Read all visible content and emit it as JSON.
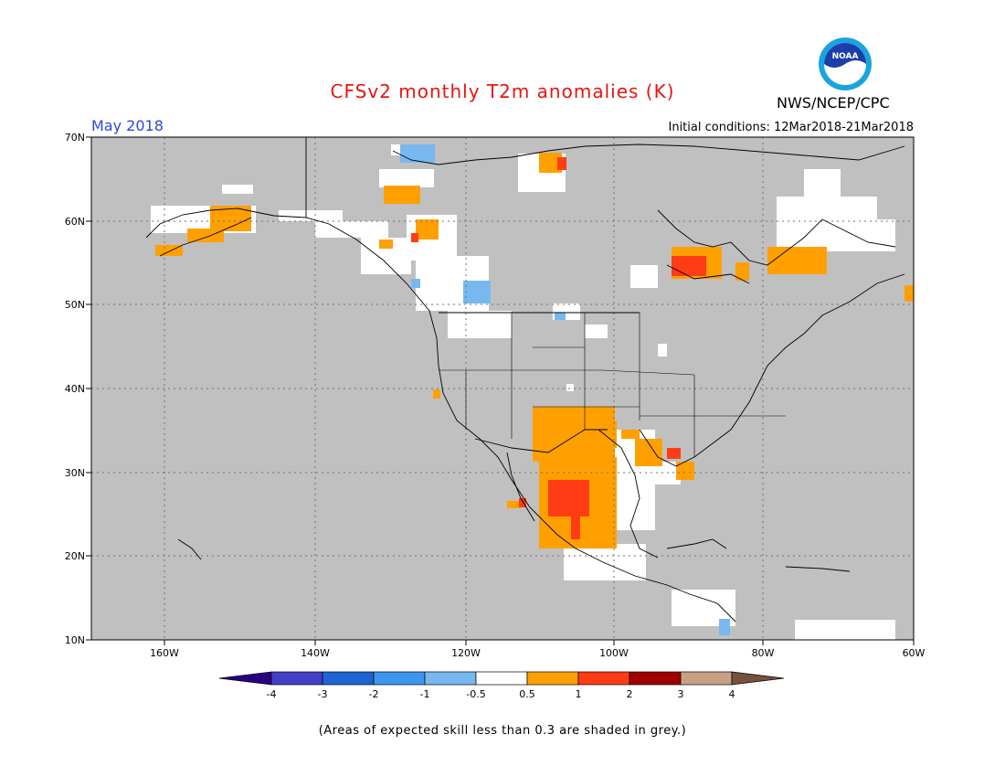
{
  "title": "CFSv2 monthly T2m anomalies (K)",
  "agency": "NWS/NCEP/CPC",
  "logo_text": "NOAA",
  "period": "May 2018",
  "init_conditions": "Initial conditions: 12Mar2018-21Mar2018",
  "note": "(Areas of expected skill less than 0.3 are shaded in grey.)",
  "lat_labels": [
    "70N",
    "60N",
    "50N",
    "40N",
    "30N",
    "20N",
    "10N"
  ],
  "lon_labels": [
    "160W",
    "140W",
    "120W",
    "100W",
    "80W",
    "60W"
  ],
  "colorbar": {
    "tick_labels": [
      "-4",
      "-3",
      "-2",
      "-1",
      "-0.5",
      "0.5",
      "1",
      "2",
      "3",
      "4"
    ],
    "colors": [
      "#280080",
      "#4040c8",
      "#1e64d2",
      "#3c96f0",
      "#78b8f0",
      "#ffffff",
      "#ffa000",
      "#ff3c14",
      "#a00000",
      "#c8a088",
      "#785040"
    ]
  },
  "colors": {
    "skill_grey": "#c0c0c0",
    "title_red": "#e8150e",
    "period_blue": "#2a48d8"
  }
}
